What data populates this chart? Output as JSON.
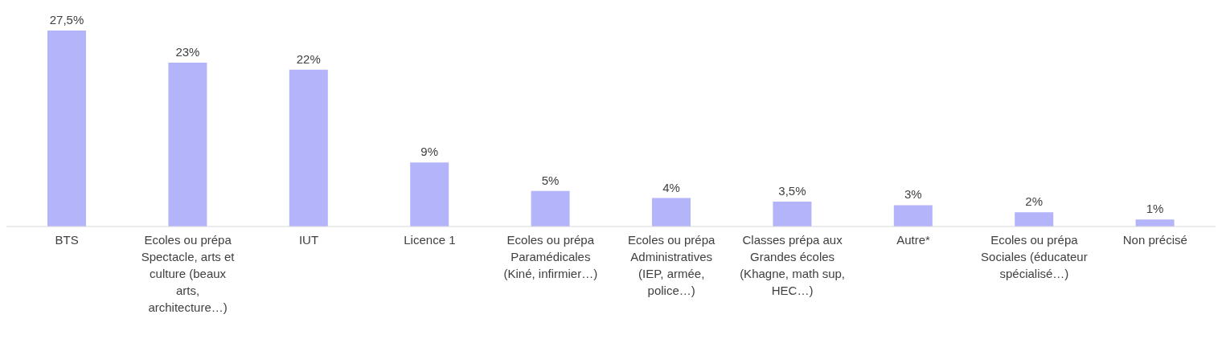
{
  "chart_data": {
    "type": "bar",
    "categories": [
      "BTS",
      "Ecoles ou prépa Spectacle, arts et culture (beaux arts, architecture…)",
      "IUT",
      "Licence 1",
      "Ecoles ou prépa Paramédicales (Kiné, infirmier…)",
      "Ecoles ou prépa Administratives (IEP, armée, police…)",
      "Classes prépa aux Grandes écoles (Khagne, math sup, HEC…)",
      "Autre*",
      "Ecoles ou prépa Sociales (éducateur spécialisé…)",
      "Non précisé"
    ],
    "values": [
      27.5,
      23,
      22,
      9,
      5,
      4,
      3.5,
      3,
      2,
      1
    ],
    "value_labels": [
      "27,5%",
      "23%",
      "22%",
      "9%",
      "5%",
      "4%",
      "3,5%",
      "3%",
      "2%",
      "1%"
    ],
    "color": "#b4b4fa",
    "grid": false,
    "legend": false
  }
}
